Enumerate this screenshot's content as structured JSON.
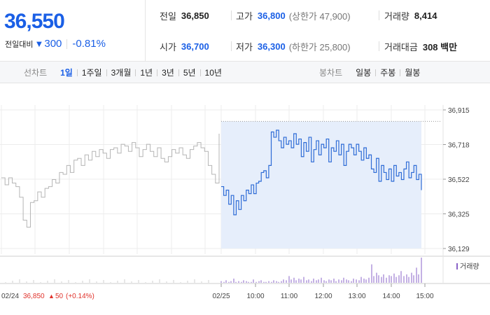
{
  "quote": {
    "price": "36,550",
    "change_label": "전일대비",
    "change_value": "300",
    "change_percent": "-0.81%"
  },
  "stats": [
    {
      "label": "전일",
      "value": "36,850",
      "sub": "",
      "down": false
    },
    {
      "label": "고가",
      "value": "36,800",
      "sub": "(상한가 47,900)",
      "down": true
    },
    {
      "label": "거래량",
      "value": "8,414",
      "sub": "",
      "down": false
    },
    {
      "label": "시가",
      "value": "36,700",
      "sub": "",
      "down": true
    },
    {
      "label": "저가",
      "value": "36,300",
      "sub": "(하한가 25,800)",
      "down": true
    },
    {
      "label": "거래대금",
      "value": "308 백만",
      "sub": "",
      "down": false
    }
  ],
  "toolbar": {
    "line_title": "선차트",
    "line_items": [
      "1일",
      "1주일",
      "3개월",
      "1년",
      "3년",
      "5년",
      "10년"
    ],
    "line_active": 0,
    "candle_title": "봉차트",
    "candle_items": [
      "일봉",
      "주봉",
      "월봉"
    ]
  },
  "chart_data": {
    "type": "line",
    "y_ticks": [
      "36,915",
      "36,718",
      "36,522",
      "36,325",
      "36,129"
    ],
    "ylim": [
      36129,
      36915
    ],
    "x_ticks": [
      "02/25",
      "10:00",
      "11:00",
      "12:00",
      "13:00",
      "14:00",
      "15:00"
    ],
    "prev_day_tick": "02/24",
    "prev_close_text": "36,850",
    "prev_change_text": "50",
    "prev_change_pct": "(+0.14%)",
    "volume_legend": "거래량",
    "series": [
      {
        "x": [
          0,
          1,
          2,
          3,
          4,
          5,
          6,
          7,
          8,
          9,
          10,
          11,
          12,
          13,
          14,
          15,
          16,
          17,
          18,
          19,
          20,
          21,
          22,
          23,
          24,
          25,
          26,
          27,
          28,
          29,
          30,
          31,
          32,
          33,
          34,
          35,
          36,
          37,
          38,
          39,
          40,
          41,
          42,
          43,
          44,
          45,
          46,
          47,
          48,
          49,
          50,
          51,
          52,
          53,
          54,
          55,
          56,
          57,
          58,
          59,
          60
        ],
        "values": [
          36530,
          36490,
          36530,
          36500,
          36480,
          36420,
          36290,
          36250,
          36390,
          36400,
          36450,
          36420,
          36470,
          36480,
          36520,
          36500,
          36560,
          36550,
          36600,
          36560,
          36630,
          36640,
          36600,
          36660,
          36630,
          36680,
          36650,
          36690,
          36670,
          36640,
          36690,
          36700,
          36670,
          36720,
          36710,
          36680,
          36730,
          36700,
          36650,
          36690,
          36720,
          36680,
          36650,
          36700,
          36640,
          36620,
          36650,
          36690,
          36670,
          36700,
          36660,
          36640,
          36690,
          36710,
          36730,
          36700,
          36680,
          36600,
          36550,
          36500,
          36780
        ]
      },
      {
        "x": [
          0,
          1,
          2,
          3,
          4,
          5,
          6,
          7,
          8,
          9,
          10,
          11,
          12,
          13,
          14,
          15,
          16,
          17,
          18,
          19,
          20,
          21,
          22,
          23,
          24,
          25,
          26,
          27,
          28,
          29,
          30,
          31,
          32,
          33,
          34,
          35,
          36,
          37,
          38,
          39,
          40,
          41,
          42,
          43,
          44,
          45,
          46,
          47,
          48,
          49,
          50,
          51,
          52,
          53,
          54,
          55,
          56,
          57,
          58,
          59,
          60,
          61,
          62,
          63,
          64,
          65,
          66,
          67,
          68,
          69,
          70,
          71,
          72,
          73,
          74,
          75,
          76,
          77,
          78,
          79,
          80
        ],
        "values": [
          36480,
          36430,
          36460,
          36380,
          36430,
          36320,
          36400,
          36350,
          36430,
          36400,
          36460,
          36440,
          36490,
          36440,
          36500,
          36510,
          36560,
          36570,
          36530,
          36600,
          36790,
          36760,
          36800,
          36740,
          36700,
          36760,
          36720,
          36740,
          36700,
          36780,
          36720,
          36750,
          36650,
          36730,
          36680,
          36760,
          36620,
          36690,
          36740,
          36660,
          36720,
          36700,
          36750,
          36620,
          36700,
          36680,
          36740,
          36660,
          36720,
          36600,
          36680,
          36720,
          36700,
          36660,
          36720,
          36680,
          36630,
          36700,
          36640,
          36660,
          36580,
          36560,
          36640,
          36510,
          36600,
          36560,
          36520,
          36580,
          36510,
          36600,
          36540,
          36560,
          36520,
          36580,
          36620,
          36530,
          36560,
          36600,
          36520,
          36550,
          36460
        ]
      }
    ],
    "volume": [
      2,
      1,
      3,
      1,
      2,
      5,
      1,
      2,
      1,
      3,
      2,
      1,
      1,
      4,
      1,
      2,
      3,
      1,
      1,
      2,
      1,
      3,
      2,
      1,
      2,
      4,
      3,
      8,
      4,
      6,
      3,
      5,
      4,
      7,
      3,
      4,
      2,
      5,
      3,
      4,
      6,
      3,
      2,
      4,
      3,
      5,
      2,
      4,
      3,
      6,
      4,
      3,
      2,
      5,
      4,
      3,
      7,
      5,
      4,
      6,
      22,
      8,
      12,
      9,
      7,
      10,
      6,
      9,
      8,
      11,
      7,
      9,
      14,
      8,
      10,
      7,
      12,
      9,
      18,
      10,
      30
    ]
  }
}
